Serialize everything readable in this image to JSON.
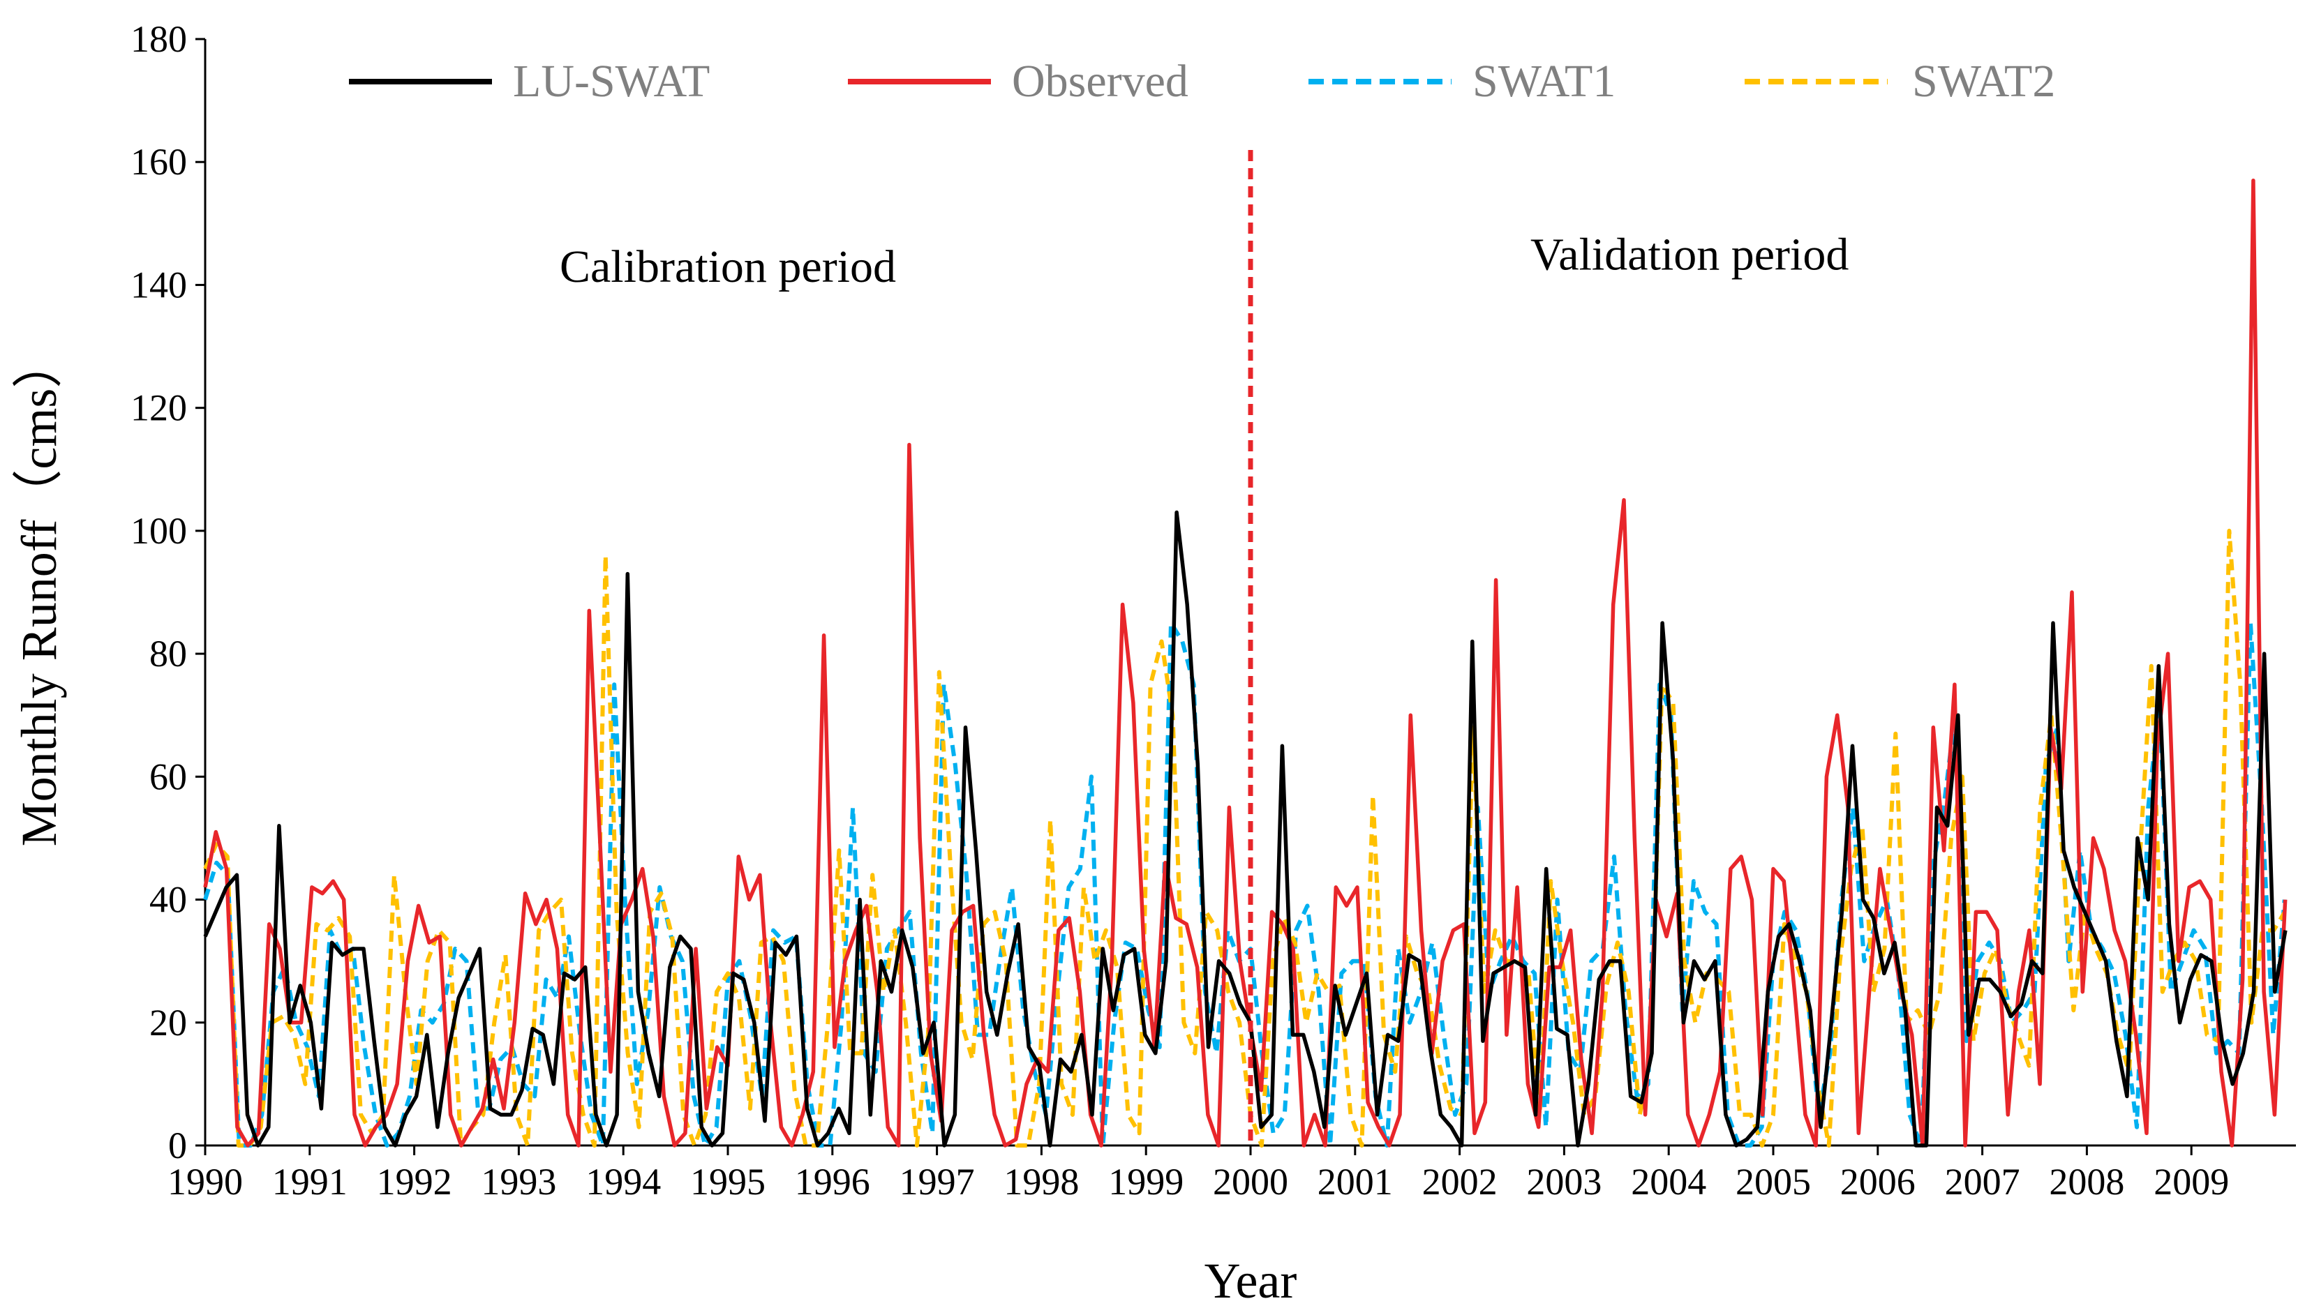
{
  "chart_data": {
    "type": "line",
    "title": "",
    "xlabel": "Year",
    "ylabel": "Monthly Runoff（cms）",
    "ylim": [
      0,
      180
    ],
    "yticks": [
      0,
      20,
      40,
      60,
      80,
      100,
      120,
      140,
      160,
      180
    ],
    "xlim": [
      1990,
      2010
    ],
    "xtick_labels": [
      "1990",
      "1991",
      "1992",
      "1993",
      "1994",
      "1995",
      "1996",
      "1997",
      "1998",
      "1999",
      "2000",
      "2001",
      "2002",
      "2003",
      "2004",
      "2005",
      "2006",
      "2007",
      "2008",
      "2009"
    ],
    "grid": false,
    "legend_position": "top",
    "annotations": [
      {
        "text": "Calibration period",
        "x": 1995.0,
        "y": 143
      },
      {
        "text": "Validation period",
        "x": 2004.2,
        "y": 145
      }
    ],
    "divider": {
      "x": 2000.0,
      "color": "#e8262a",
      "style": "dashed"
    },
    "series": [
      {
        "name": "LU-SWAT",
        "color": "#000000",
        "style": "solid",
        "values": [
          34,
          38,
          42,
          44,
          5,
          0,
          3,
          52,
          20,
          26,
          20,
          6,
          33,
          31,
          32,
          32,
          17,
          3,
          0,
          5,
          8,
          18,
          3,
          15,
          24,
          28,
          32,
          6,
          5,
          5,
          9,
          19,
          18,
          10,
          28,
          27,
          29,
          5,
          0,
          5,
          93,
          25,
          15,
          8,
          29,
          34,
          32,
          3,
          0,
          2,
          28,
          27,
          20,
          4,
          33,
          31,
          34,
          6,
          0,
          2,
          6,
          2,
          40,
          5,
          30,
          25,
          35,
          29,
          15,
          20,
          0,
          5,
          68,
          48,
          25,
          18,
          28,
          36,
          16,
          13,
          0,
          14,
          12,
          18,
          5,
          32,
          22,
          31,
          32,
          18,
          15,
          30,
          103,
          88,
          62,
          16,
          30,
          28,
          23,
          20,
          3,
          5,
          65,
          18,
          18,
          12,
          3,
          26,
          18,
          23,
          28,
          5,
          18,
          17,
          31,
          30,
          16,
          5,
          3,
          0,
          82,
          17,
          28,
          29,
          30,
          29,
          5,
          45,
          19,
          18,
          0,
          10,
          27,
          30,
          30,
          8,
          7,
          15,
          85,
          63,
          20,
          30,
          27,
          30,
          5,
          0,
          1,
          3,
          25,
          34,
          36,
          30,
          22,
          3,
          20,
          38,
          65,
          40,
          37,
          28,
          33,
          22,
          0,
          0,
          55,
          52,
          70,
          18,
          27,
          27,
          25,
          21,
          23,
          30,
          28,
          85,
          48,
          42,
          38,
          34,
          30,
          17,
          8,
          50,
          40,
          78,
          36,
          20,
          27,
          31,
          30,
          17,
          10,
          15,
          25,
          80,
          25,
          35
        ]
      },
      {
        "name": "Observed",
        "color": "#e8262a",
        "style": "solid",
        "values": [
          42,
          51,
          45,
          3,
          0,
          2,
          36,
          32,
          20,
          20,
          42,
          41,
          43,
          40,
          5,
          0,
          3,
          5,
          10,
          30,
          39,
          33,
          34,
          5,
          0,
          3,
          6,
          14,
          6,
          20,
          41,
          36,
          40,
          32,
          5,
          0,
          87,
          50,
          12,
          36,
          40,
          45,
          34,
          8,
          0,
          2,
          32,
          6,
          16,
          13,
          47,
          40,
          44,
          20,
          3,
          0,
          5,
          12,
          83,
          16,
          30,
          35,
          39,
          25,
          3,
          0,
          114,
          50,
          15,
          4,
          35,
          38,
          39,
          18,
          5,
          0,
          1,
          10,
          14,
          12,
          35,
          37,
          25,
          5,
          0,
          30,
          88,
          72,
          32,
          16,
          46,
          37,
          36,
          29,
          5,
          0,
          55,
          30,
          19,
          9,
          38,
          36,
          32,
          0,
          5,
          0,
          42,
          39,
          42,
          7,
          3,
          0,
          5,
          70,
          35,
          15,
          30,
          35,
          36,
          2,
          7,
          92,
          18,
          42,
          10,
          3,
          29,
          29,
          35,
          14,
          2,
          25,
          88,
          105,
          50,
          5,
          40,
          34,
          41,
          5,
          0,
          5,
          12,
          45,
          47,
          40,
          5,
          45,
          43,
          25,
          5,
          0,
          60,
          70,
          55,
          2,
          25,
          45,
          35,
          25,
          18,
          0,
          68,
          48,
          75,
          0,
          38,
          38,
          35,
          5,
          25,
          35,
          10,
          68,
          58,
          90,
          25,
          50,
          45,
          35,
          30,
          18,
          2,
          65,
          80,
          30,
          42,
          43,
          40,
          12,
          0,
          27,
          157,
          25,
          5,
          40
        ]
      },
      {
        "name": "SWAT1",
        "color": "#00b0f0",
        "style": "dashed",
        "values": [
          40,
          46,
          44,
          0,
          0,
          5,
          25,
          29,
          20,
          16,
          8,
          35,
          31,
          32,
          16,
          5,
          0,
          2,
          8,
          22,
          20,
          23,
          32,
          30,
          6,
          6,
          14,
          16,
          10,
          8,
          27,
          24,
          34,
          18,
          5,
          0,
          75,
          38,
          10,
          22,
          42,
          34,
          30,
          8,
          0,
          3,
          27,
          30,
          21,
          8,
          35,
          33,
          34,
          10,
          0,
          0,
          20,
          55,
          15,
          12,
          32,
          35,
          38,
          15,
          2,
          75,
          62,
          44,
          18,
          18,
          31,
          42,
          22,
          12,
          5,
          25,
          42,
          45,
          60,
          0,
          20,
          33,
          32,
          22,
          16,
          85,
          82,
          75,
          25,
          15,
          35,
          30,
          32,
          15,
          2,
          5,
          35,
          39,
          25,
          0,
          28,
          30,
          30,
          8,
          0,
          32,
          20,
          25,
          33,
          18,
          5,
          10,
          55,
          25,
          30,
          34,
          30,
          28,
          3,
          40,
          15,
          12,
          30,
          32,
          47,
          22,
          8,
          10,
          75,
          70,
          22,
          43,
          38,
          36,
          5,
          0,
          0,
          3,
          30,
          38,
          35,
          25,
          5,
          15,
          40,
          55,
          30,
          36,
          40,
          28,
          5,
          0,
          45,
          55,
          70,
          17,
          30,
          33,
          30,
          20,
          22,
          25,
          62,
          68,
          30,
          48,
          35,
          32,
          28,
          18,
          3,
          55,
          72,
          25,
          30,
          35,
          32,
          15,
          17,
          15,
          85,
          55,
          18,
          40
        ]
      },
      {
        "name": "SWAT2",
        "color": "#ffc000",
        "style": "dashed",
        "values": [
          45,
          49,
          47,
          0,
          0,
          3,
          20,
          21,
          18,
          10,
          36,
          35,
          37,
          34,
          5,
          2,
          5,
          44,
          25,
          10,
          30,
          35,
          33,
          0,
          3,
          5,
          20,
          31,
          5,
          0,
          35,
          38,
          40,
          15,
          5,
          0,
          96,
          38,
          15,
          3,
          38,
          41,
          34,
          5,
          0,
          5,
          25,
          28,
          24,
          6,
          33,
          34,
          30,
          9,
          0,
          0,
          20,
          48,
          15,
          15,
          44,
          25,
          35,
          20,
          0,
          18,
          77,
          46,
          20,
          14,
          36,
          38,
          30,
          0,
          0,
          10,
          53,
          10,
          5,
          42,
          30,
          35,
          29,
          5,
          2,
          75,
          82,
          70,
          20,
          15,
          38,
          35,
          25,
          20,
          5,
          0,
          30,
          37,
          33,
          20,
          28,
          25,
          26,
          5,
          0,
          57,
          18,
          12,
          34,
          28,
          25,
          13,
          6,
          5,
          68,
          25,
          35,
          30,
          30,
          28,
          5,
          43,
          30,
          20,
          5,
          8,
          26,
          33,
          25,
          5,
          15,
          75,
          72,
          30,
          20,
          28,
          27,
          25,
          5,
          5,
          0,
          5,
          36,
          30,
          25,
          10,
          0,
          30,
          45,
          52,
          25,
          32,
          67,
          20,
          22,
          18,
          25,
          50,
          60,
          17,
          28,
          32,
          23,
          18,
          13,
          55,
          70,
          48,
          22,
          38,
          32,
          28,
          18,
          12,
          48,
          78,
          25,
          30,
          33,
          30,
          18,
          17,
          100,
          75,
          20,
          35,
          35,
          38
        ]
      }
    ]
  }
}
